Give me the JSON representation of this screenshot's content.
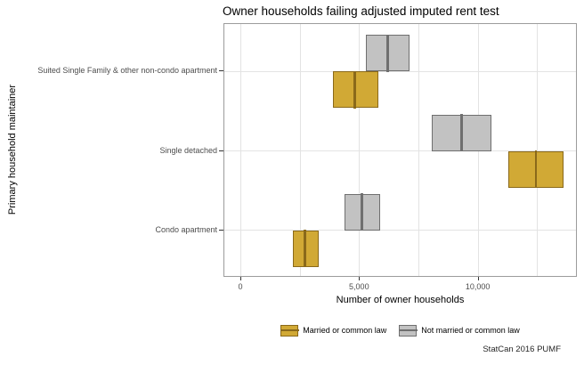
{
  "title": "Owner households failing adjusted imputed rent test",
  "caption": "StatCan 2016 PUMF",
  "axes": {
    "x_label": "Number of owner households",
    "y_label": "Primary household maintainer",
    "x_ticks": [
      {
        "value": 0,
        "label": "0"
      },
      {
        "value": 5000,
        "label": "5,000"
      },
      {
        "value": 10000,
        "label": "10,000"
      }
    ]
  },
  "legend": {
    "items": [
      {
        "label": "Married or common law",
        "fill": "#d1a935",
        "stroke": "#8a691a"
      },
      {
        "label": "Not married or common law",
        "fill": "#c2c2c2",
        "stroke": "#6f6f6f"
      }
    ]
  },
  "chart_data": {
    "type": "crossbar",
    "orientation": "horizontal",
    "title": "Owner households failing adjusted imputed rent test",
    "xlabel": "Number of owner households",
    "ylabel": "Primary household maintainer",
    "categories": [
      "Suited Single Family & other non-condo apartment",
      "Single detached",
      "Condo apartment"
    ],
    "xlim": [
      -712,
      14175
    ],
    "x_gridlines": [
      0,
      2500,
      5000,
      7500,
      10000,
      12500
    ],
    "legend_position": "bottom",
    "series": [
      {
        "name": "Not married or common law",
        "fill": "#c2c2c2",
        "stroke": "#6f6f6f",
        "dodge": "above",
        "values": [
          {
            "category": "Suited Single Family & other non-condo apartment",
            "min": 5250,
            "mid": 6190,
            "max": 7100
          },
          {
            "category": "Single detached",
            "min": 8020,
            "mid": 9310,
            "max": 10530
          },
          {
            "category": "Condo apartment",
            "min": 4350,
            "mid": 5100,
            "max": 5850
          }
        ]
      },
      {
        "name": "Married or common law",
        "fill": "#d1a935",
        "stroke": "#8a691a",
        "dodge": "below",
        "values": [
          {
            "category": "Suited Single Family & other non-condo apartment",
            "min": 3850,
            "mid": 4810,
            "max": 5780
          },
          {
            "category": "Single detached",
            "min": 11250,
            "mid": 12440,
            "max": 13580
          },
          {
            "category": "Condo apartment",
            "min": 2190,
            "mid": 2710,
            "max": 3250
          }
        ]
      }
    ]
  }
}
